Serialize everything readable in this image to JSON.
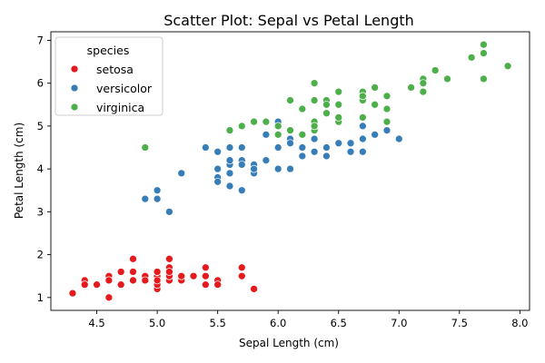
{
  "chart_data": {
    "type": "scatter",
    "title": "Scatter Plot: Sepal vs Petal Length",
    "xlabel": "Sepal Length (cm)",
    "ylabel": "Petal Length (cm)",
    "xlim": [
      4.12,
      8.08
    ],
    "ylim": [
      0.7,
      7.2
    ],
    "xticks": [
      4.5,
      5.0,
      5.5,
      6.0,
      6.5,
      7.0,
      7.5,
      8.0
    ],
    "yticks": [
      1,
      2,
      3,
      4,
      5,
      6,
      7
    ],
    "grid": false,
    "legend": {
      "title": "species",
      "placement": "top-left"
    },
    "series": [
      {
        "name": "setosa",
        "color": "#e41a1c",
        "points": [
          [
            5.1,
            1.4
          ],
          [
            4.9,
            1.4
          ],
          [
            4.7,
            1.3
          ],
          [
            4.6,
            1.5
          ],
          [
            5.0,
            1.4
          ],
          [
            5.4,
            1.7
          ],
          [
            4.6,
            1.4
          ],
          [
            5.0,
            1.5
          ],
          [
            4.4,
            1.4
          ],
          [
            4.9,
            1.5
          ],
          [
            5.4,
            1.5
          ],
          [
            4.8,
            1.6
          ],
          [
            4.8,
            1.4
          ],
          [
            4.3,
            1.1
          ],
          [
            5.8,
            1.2
          ],
          [
            5.7,
            1.5
          ],
          [
            5.4,
            1.3
          ],
          [
            5.1,
            1.4
          ],
          [
            5.7,
            1.7
          ],
          [
            5.1,
            1.5
          ],
          [
            5.4,
            1.7
          ],
          [
            5.1,
            1.5
          ],
          [
            4.6,
            1.0
          ],
          [
            5.1,
            1.7
          ],
          [
            4.8,
            1.9
          ],
          [
            5.0,
            1.6
          ],
          [
            5.0,
            1.6
          ],
          [
            5.2,
            1.5
          ],
          [
            5.2,
            1.4
          ],
          [
            4.7,
            1.6
          ],
          [
            4.8,
            1.6
          ],
          [
            5.4,
            1.5
          ],
          [
            5.2,
            1.5
          ],
          [
            5.5,
            1.4
          ],
          [
            4.9,
            1.5
          ],
          [
            5.0,
            1.2
          ],
          [
            5.5,
            1.3
          ],
          [
            4.9,
            1.4
          ],
          [
            4.4,
            1.3
          ],
          [
            5.1,
            1.5
          ],
          [
            5.0,
            1.3
          ],
          [
            4.5,
            1.3
          ],
          [
            4.4,
            1.3
          ],
          [
            5.0,
            1.6
          ],
          [
            5.1,
            1.9
          ],
          [
            4.8,
            1.4
          ],
          [
            5.1,
            1.6
          ],
          [
            4.6,
            1.4
          ],
          [
            5.3,
            1.5
          ],
          [
            5.0,
            1.4
          ]
        ]
      },
      {
        "name": "versicolor",
        "color": "#377eb8",
        "points": [
          [
            7.0,
            4.7
          ],
          [
            6.4,
            4.5
          ],
          [
            6.9,
            4.9
          ],
          [
            5.5,
            4.0
          ],
          [
            6.5,
            4.6
          ],
          [
            5.7,
            4.5
          ],
          [
            6.3,
            4.7
          ],
          [
            4.9,
            3.3
          ],
          [
            6.6,
            4.6
          ],
          [
            5.2,
            3.9
          ],
          [
            5.0,
            3.5
          ],
          [
            5.9,
            4.2
          ],
          [
            6.0,
            4.0
          ],
          [
            6.1,
            4.7
          ],
          [
            5.6,
            3.6
          ],
          [
            6.7,
            4.4
          ],
          [
            5.6,
            4.5
          ],
          [
            5.8,
            4.1
          ],
          [
            6.2,
            4.5
          ],
          [
            5.6,
            3.9
          ],
          [
            5.9,
            4.8
          ],
          [
            6.1,
            4.0
          ],
          [
            6.3,
            4.9
          ],
          [
            6.1,
            4.7
          ],
          [
            6.4,
            4.3
          ],
          [
            6.6,
            4.4
          ],
          [
            6.8,
            4.8
          ],
          [
            6.7,
            5.0
          ],
          [
            6.0,
            4.5
          ],
          [
            5.7,
            3.5
          ],
          [
            5.5,
            3.8
          ],
          [
            5.5,
            3.7
          ],
          [
            5.8,
            3.9
          ],
          [
            6.0,
            5.1
          ],
          [
            5.4,
            4.5
          ],
          [
            6.0,
            4.5
          ],
          [
            6.7,
            4.7
          ],
          [
            6.3,
            4.4
          ],
          [
            5.6,
            4.1
          ],
          [
            5.5,
            4.0
          ],
          [
            5.5,
            4.4
          ],
          [
            6.1,
            4.6
          ],
          [
            5.8,
            4.0
          ],
          [
            5.0,
            3.3
          ],
          [
            5.6,
            4.2
          ],
          [
            5.7,
            4.2
          ],
          [
            5.7,
            4.2
          ],
          [
            6.2,
            4.3
          ],
          [
            5.1,
            3.0
          ],
          [
            5.7,
            4.1
          ]
        ]
      },
      {
        "name": "virginica",
        "color": "#4daf4a",
        "points": [
          [
            6.3,
            6.0
          ],
          [
            5.8,
            5.1
          ],
          [
            7.1,
            5.9
          ],
          [
            6.3,
            5.6
          ],
          [
            6.5,
            5.8
          ],
          [
            7.6,
            6.6
          ],
          [
            4.9,
            4.5
          ],
          [
            7.3,
            6.3
          ],
          [
            6.7,
            5.8
          ],
          [
            7.2,
            6.1
          ],
          [
            6.5,
            5.1
          ],
          [
            6.4,
            5.3
          ],
          [
            6.8,
            5.5
          ],
          [
            5.7,
            5.0
          ],
          [
            5.8,
            5.1
          ],
          [
            6.4,
            5.3
          ],
          [
            6.5,
            5.5
          ],
          [
            7.7,
            6.7
          ],
          [
            7.7,
            6.9
          ],
          [
            6.0,
            5.0
          ],
          [
            6.9,
            5.7
          ],
          [
            5.6,
            4.9
          ],
          [
            7.7,
            6.7
          ],
          [
            6.3,
            4.9
          ],
          [
            6.7,
            5.7
          ],
          [
            7.2,
            6.0
          ],
          [
            6.2,
            4.8
          ],
          [
            6.1,
            4.9
          ],
          [
            6.4,
            5.6
          ],
          [
            7.2,
            5.8
          ],
          [
            7.4,
            6.1
          ],
          [
            7.9,
            6.4
          ],
          [
            6.4,
            5.6
          ],
          [
            6.3,
            5.1
          ],
          [
            6.1,
            5.6
          ],
          [
            7.7,
            6.1
          ],
          [
            6.3,
            5.6
          ],
          [
            6.4,
            5.5
          ],
          [
            6.0,
            4.8
          ],
          [
            6.9,
            5.4
          ],
          [
            6.7,
            5.6
          ],
          [
            6.9,
            5.1
          ],
          [
            5.8,
            5.1
          ],
          [
            6.8,
            5.9
          ],
          [
            6.7,
            5.7
          ],
          [
            6.7,
            5.2
          ],
          [
            6.3,
            5.0
          ],
          [
            6.5,
            5.2
          ],
          [
            6.2,
            5.4
          ],
          [
            5.9,
            5.1
          ]
        ]
      }
    ]
  }
}
